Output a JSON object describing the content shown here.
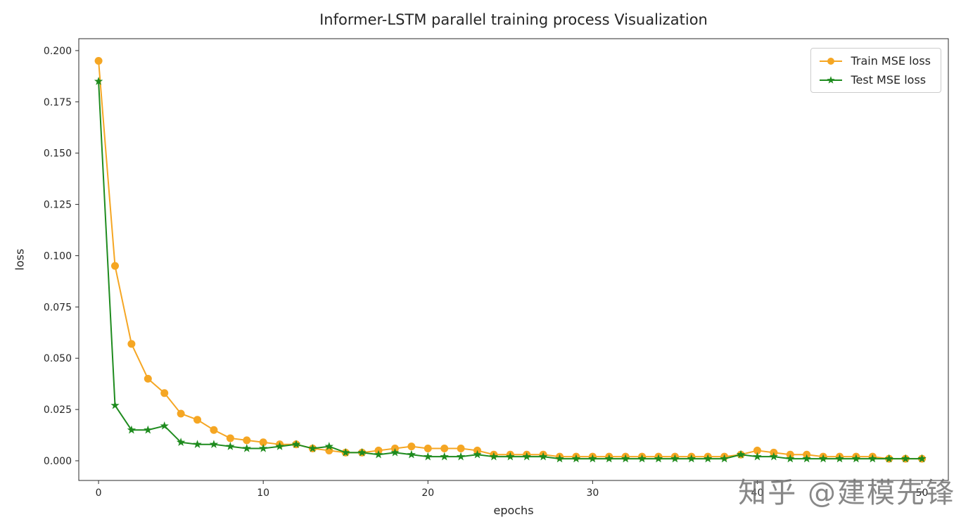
{
  "watermark": {
    "text": "知乎 @建模先锋"
  },
  "chart_data": {
    "type": "line",
    "title": "Informer-LSTM parallel training process Visualization",
    "xlabel": "epochs",
    "ylabel": "loss",
    "grid": false,
    "legend_position": "upper right",
    "xlim": [
      -1.2,
      51.6
    ],
    "ylim": [
      -0.0096,
      0.2058
    ],
    "xticks": [
      0,
      10,
      20,
      30,
      40,
      50
    ],
    "yticks": [
      0.0,
      0.025,
      0.05,
      0.075,
      0.1,
      0.125,
      0.15,
      0.175,
      0.2
    ],
    "x": [
      0,
      1,
      2,
      3,
      4,
      5,
      6,
      7,
      8,
      9,
      10,
      11,
      12,
      13,
      14,
      15,
      16,
      17,
      18,
      19,
      20,
      21,
      22,
      23,
      24,
      25,
      26,
      27,
      28,
      29,
      30,
      31,
      32,
      33,
      34,
      35,
      36,
      37,
      38,
      39,
      40,
      41,
      42,
      43,
      44,
      45,
      46,
      47,
      48,
      49,
      50
    ],
    "series": [
      {
        "name": "Train MSE loss",
        "color": "#F5A623",
        "marker": "circle",
        "values": [
          0.195,
          0.095,
          0.057,
          0.04,
          0.033,
          0.023,
          0.02,
          0.015,
          0.011,
          0.01,
          0.009,
          0.008,
          0.008,
          0.006,
          0.005,
          0.004,
          0.004,
          0.005,
          0.006,
          0.007,
          0.006,
          0.006,
          0.006,
          0.005,
          0.003,
          0.003,
          0.003,
          0.003,
          0.002,
          0.002,
          0.002,
          0.002,
          0.002,
          0.002,
          0.002,
          0.002,
          0.002,
          0.002,
          0.002,
          0.003,
          0.005,
          0.004,
          0.003,
          0.003,
          0.002,
          0.002,
          0.002,
          0.002,
          0.001,
          0.001,
          0.001
        ]
      },
      {
        "name": "Test MSE loss",
        "color": "#1E8B1E",
        "marker": "star",
        "values": [
          0.185,
          0.027,
          0.015,
          0.015,
          0.017,
          0.009,
          0.008,
          0.008,
          0.007,
          0.006,
          0.006,
          0.007,
          0.008,
          0.006,
          0.007,
          0.004,
          0.004,
          0.003,
          0.004,
          0.003,
          0.002,
          0.002,
          0.002,
          0.003,
          0.002,
          0.002,
          0.002,
          0.002,
          0.001,
          0.001,
          0.001,
          0.001,
          0.001,
          0.001,
          0.001,
          0.001,
          0.001,
          0.001,
          0.001,
          0.003,
          0.002,
          0.002,
          0.001,
          0.001,
          0.001,
          0.001,
          0.001,
          0.001,
          0.001,
          0.001,
          0.001
        ]
      }
    ]
  }
}
